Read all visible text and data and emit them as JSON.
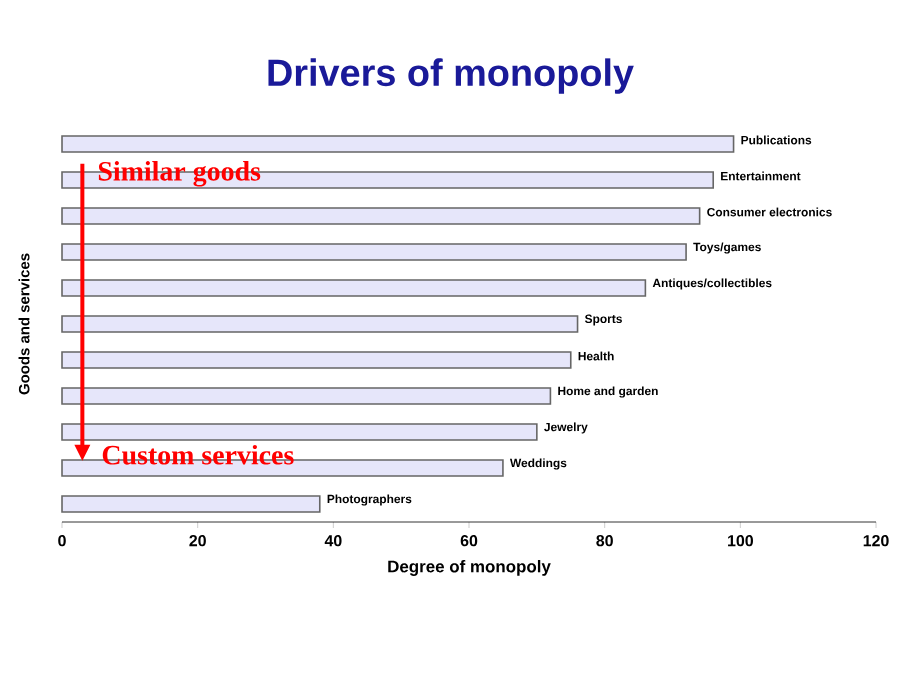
{
  "chart_data": {
    "type": "bar",
    "orientation": "horizontal",
    "title": "Drivers of monopoly",
    "xlabel": "Degree of monopoly",
    "ylabel": "Goods and services",
    "categories": [
      "Publications",
      "Entertainment",
      "Consumer electronics",
      "Toys/games",
      "Antiques/collectibles",
      "Sports",
      "Health",
      "Home and garden",
      "Jewelry",
      "Weddings",
      "Photographers"
    ],
    "values": [
      99,
      96,
      94,
      92,
      86,
      76,
      75,
      72,
      70,
      65,
      38
    ],
    "color": "#e6e6fa",
    "xlim": [
      0,
      120
    ],
    "xticks": [
      0,
      20,
      40,
      60,
      80,
      100,
      120
    ],
    "annotations": [
      "Similar goods",
      "Custom services"
    ]
  }
}
